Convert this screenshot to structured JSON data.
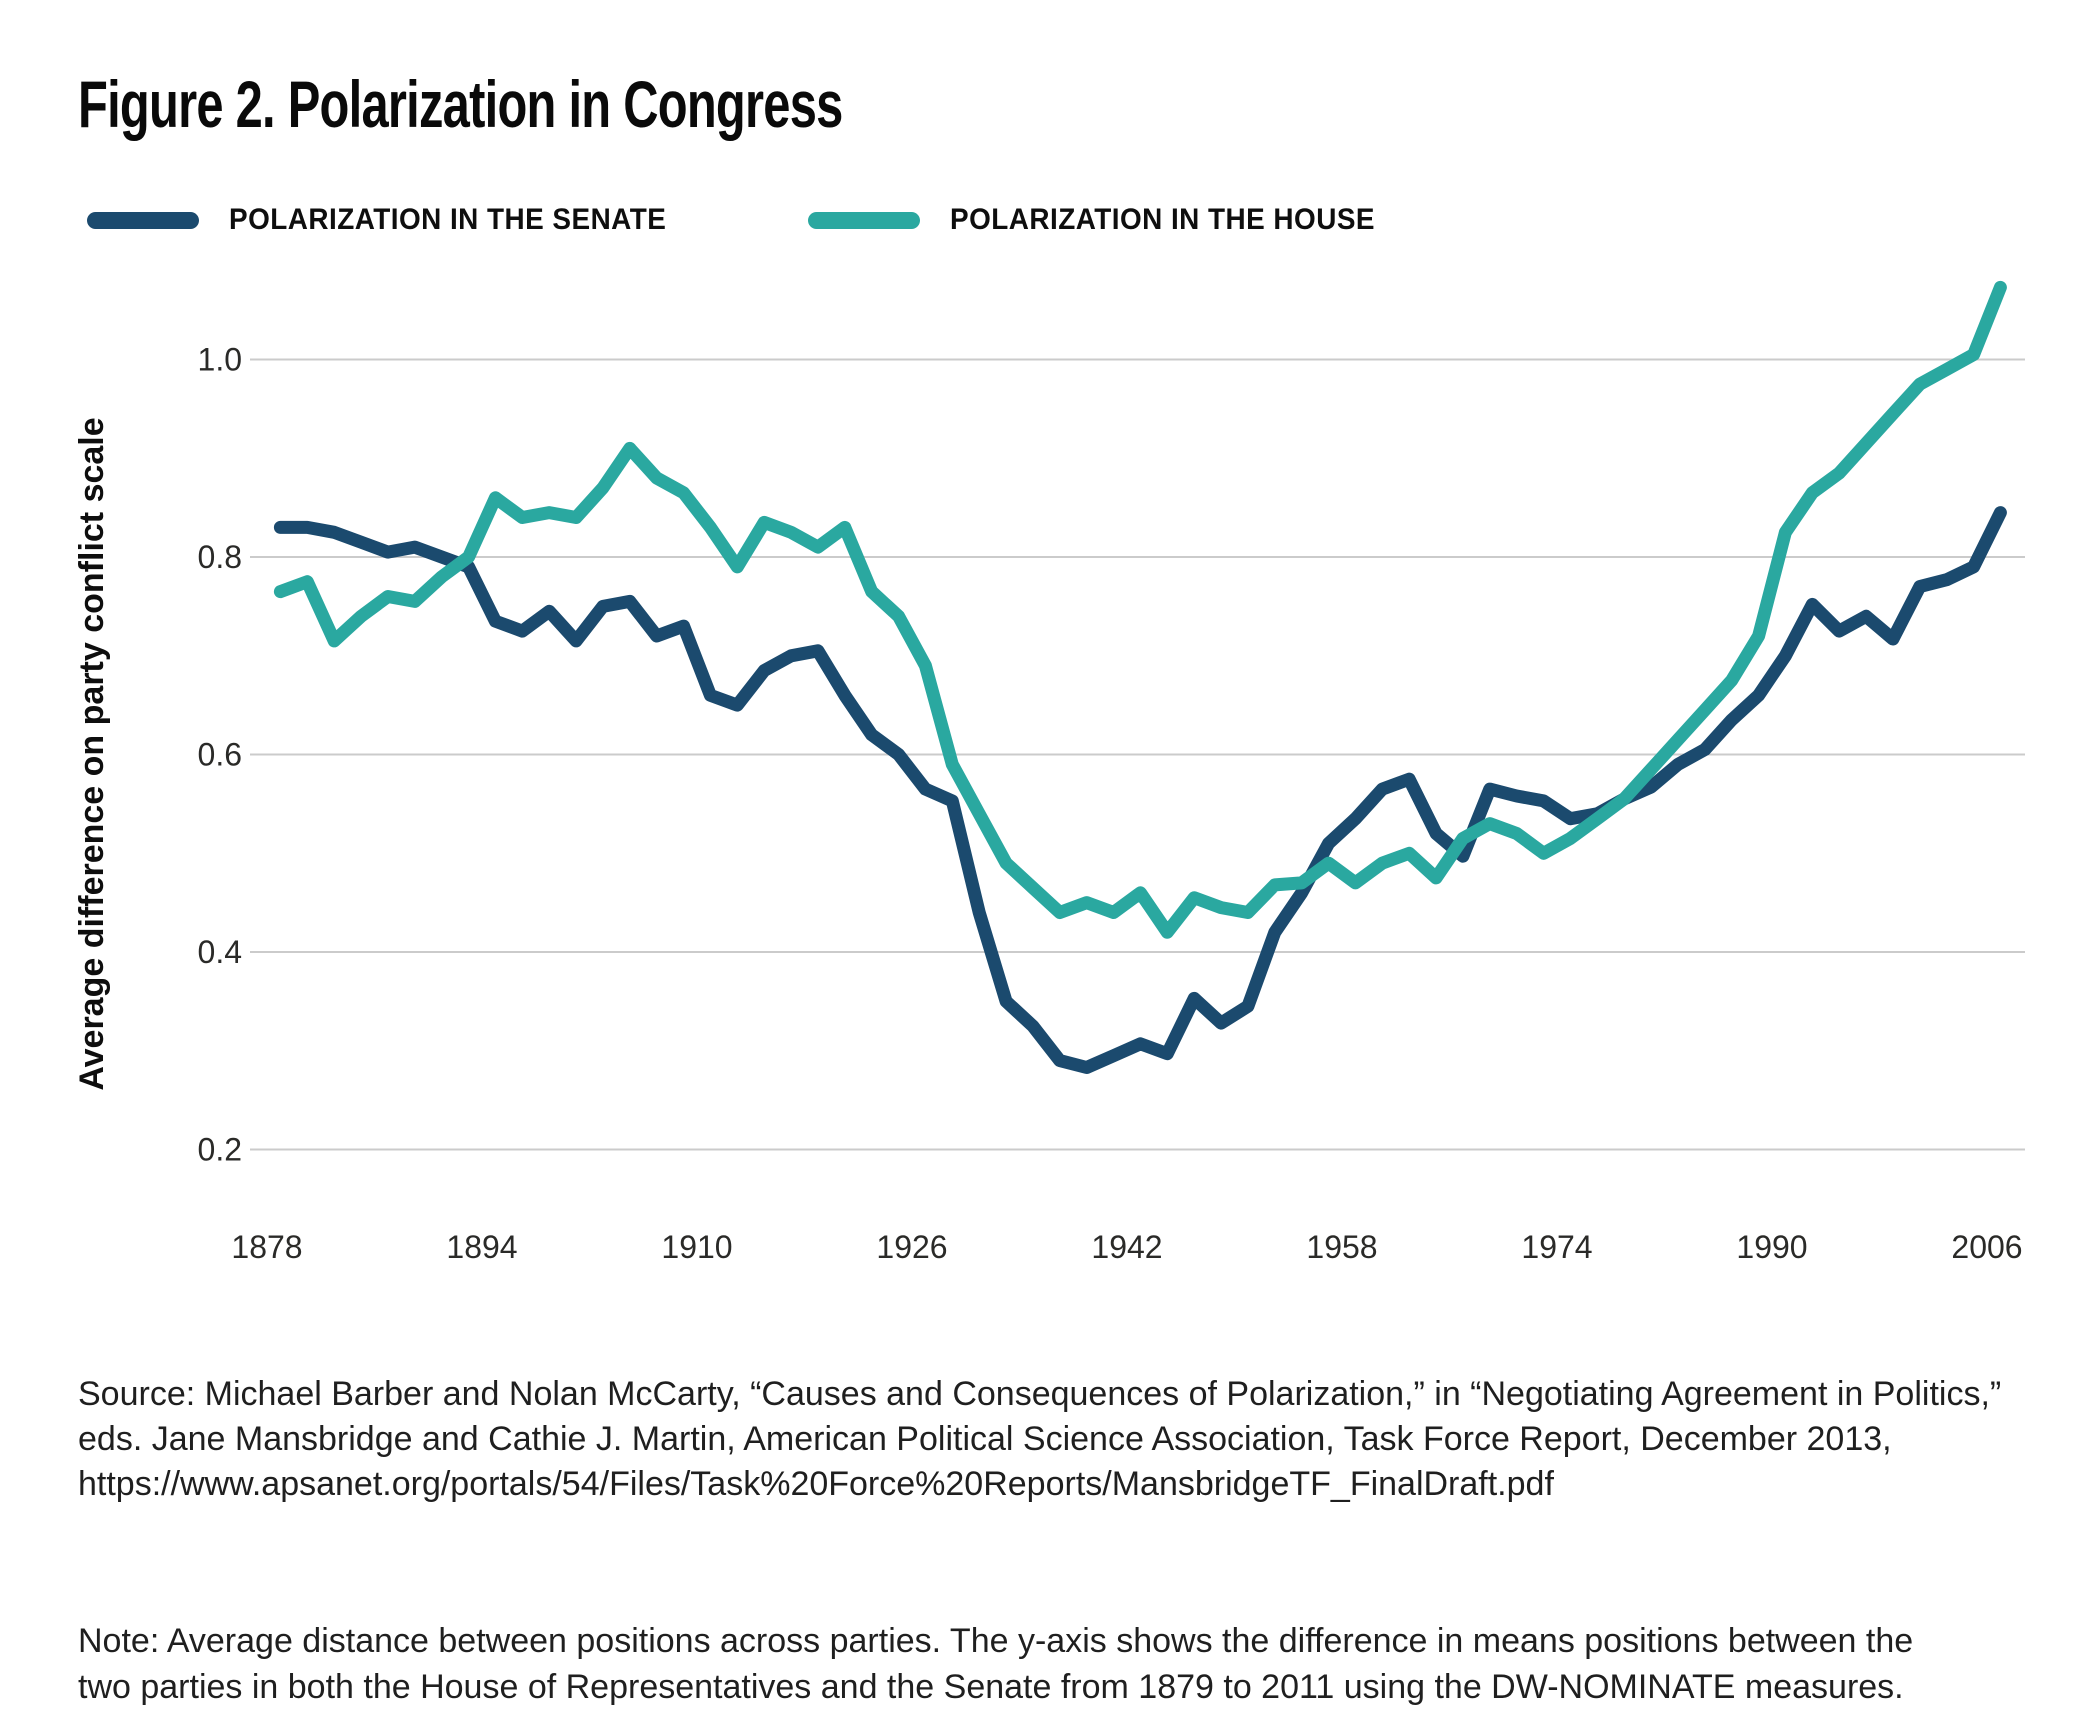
{
  "figure": {
    "title": "Figure 2. Polarization in Congress"
  },
  "colors": {
    "senate": "#1b4a6e",
    "house": "#2aa8a0",
    "gridline": "#cbcbcb",
    "text": "#1f1f1f"
  },
  "chart_data": {
    "type": "line",
    "title": "Figure 2. Polarization in Congress",
    "xlabel": "",
    "ylabel": "Average difference on party conflict scale",
    "grid": "horizontal",
    "legend_position": "top",
    "ylim": [
      0.15,
      1.12
    ],
    "y_ticks": [
      "1.0",
      "0.8",
      "0.6",
      "0.4",
      "0.2"
    ],
    "x_ticks": [
      1878,
      1894,
      1910,
      1926,
      1942,
      1958,
      1974,
      1990,
      2006
    ],
    "x": [
      1879,
      1881,
      1883,
      1885,
      1887,
      1889,
      1891,
      1893,
      1895,
      1897,
      1899,
      1901,
      1903,
      1905,
      1907,
      1909,
      1911,
      1913,
      1915,
      1917,
      1919,
      1921,
      1923,
      1925,
      1927,
      1929,
      1931,
      1933,
      1935,
      1937,
      1939,
      1941,
      1943,
      1945,
      1947,
      1949,
      1951,
      1953,
      1955,
      1957,
      1959,
      1961,
      1963,
      1965,
      1967,
      1969,
      1971,
      1973,
      1975,
      1977,
      1979,
      1981,
      1983,
      1985,
      1987,
      1989,
      1991,
      1993,
      1995,
      1997,
      1999,
      2001,
      2003,
      2005,
      2007
    ],
    "series": [
      {
        "name": "POLARIZATION IN THE SENATE",
        "color": "#1b4a6e",
        "values": [
          0.83,
          0.83,
          0.825,
          0.815,
          0.805,
          0.81,
          0.8,
          0.79,
          0.735,
          0.725,
          0.745,
          0.715,
          0.75,
          0.755,
          0.72,
          0.73,
          0.66,
          0.65,
          0.685,
          0.7,
          0.705,
          0.66,
          0.62,
          0.6,
          0.565,
          0.553,
          0.44,
          0.35,
          0.325,
          0.29,
          0.283,
          0.295,
          0.307,
          0.297,
          0.353,
          0.328,
          0.345,
          0.42,
          0.46,
          0.51,
          0.535,
          0.565,
          0.575,
          0.52,
          0.497,
          0.565,
          0.558,
          0.553,
          0.535,
          0.54,
          0.555,
          0.567,
          0.59,
          0.605,
          0.635,
          0.66,
          0.7,
          0.752,
          0.725,
          0.74,
          0.717,
          0.77,
          0.777,
          0.79,
          0.845
        ]
      },
      {
        "name": "POLARIZATION IN THE HOUSE",
        "color": "#2aa8a0",
        "values": [
          0.765,
          0.775,
          0.715,
          0.74,
          0.76,
          0.755,
          0.78,
          0.8,
          0.86,
          0.84,
          0.845,
          0.84,
          0.87,
          0.91,
          0.88,
          0.865,
          0.83,
          0.79,
          0.835,
          0.825,
          0.81,
          0.83,
          0.765,
          0.74,
          0.69,
          0.59,
          0.54,
          0.49,
          0.465,
          0.44,
          0.45,
          0.44,
          0.46,
          0.42,
          0.455,
          0.445,
          0.44,
          0.468,
          0.47,
          0.49,
          0.47,
          0.49,
          0.5,
          0.475,
          0.515,
          0.53,
          0.52,
          0.5,
          0.515,
          0.535,
          0.555,
          0.585,
          0.615,
          0.645,
          0.675,
          0.72,
          0.825,
          0.865,
          0.885,
          0.915,
          0.945,
          0.975,
          0.99,
          1.005,
          1.073
        ]
      }
    ]
  },
  "source": {
    "lines": [
      "Source: Michael Barber and Nolan McCarty, “Causes and Consequences of Polarization,” in “Negotiating Agreement in Politics,”",
      "eds. Jane Mansbridge and Cathie J. Martin, American Political Science Association, Task Force Report, December 2013,",
      "https://www.apsanet.org/portals/54/Files/Task%20Force%20Reports/MansbridgeTF_FinalDraft.pdf"
    ]
  },
  "note": {
    "lines": [
      "Note: Average distance between positions across parties. The y-axis shows the difference in means positions between the",
      "two parties in both the House of Representatives and the Senate from 1879 to 2011 using the DW-NOMINATE measures."
    ]
  }
}
